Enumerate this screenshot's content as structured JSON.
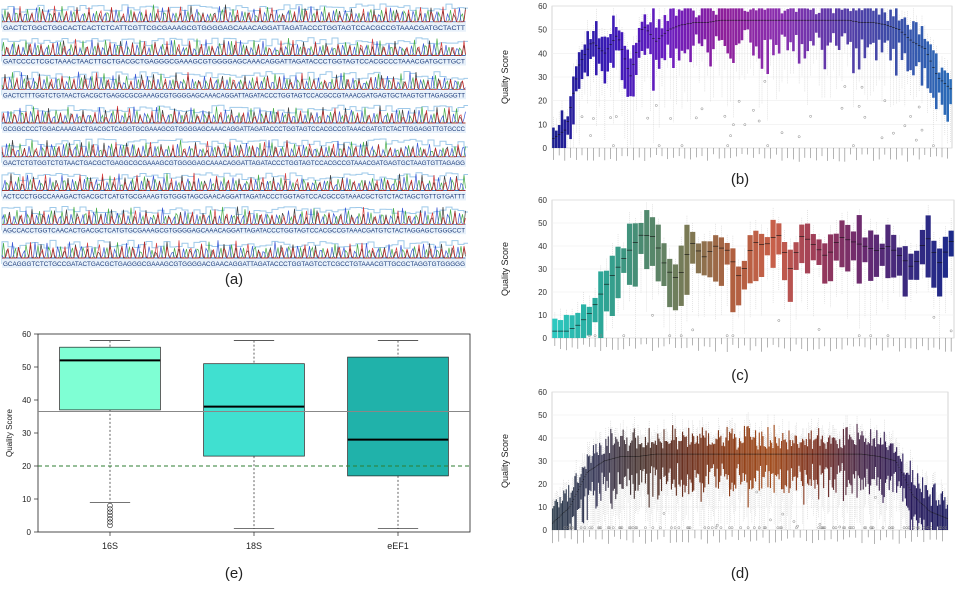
{
  "panel_labels": {
    "a": "(a)",
    "b": "(b)",
    "c": "(c)",
    "d": "(d)",
    "e": "(e)"
  },
  "chart_data": [
    {
      "panel": "a",
      "type": "other",
      "description_kind": "sequencing chromatogram",
      "rows": 8,
      "sequence_rows": [
        "GACTCTGGCTGGCACTCACTCTCATTCGTTCGCGAAAGCGTGGGGAGCAAACAGGATTAGATACCCTGGTAGTCCACGCCGTAAACGATGCTACTT",
        "GATCCCCTCGCTAAACTAACTTGCTGACGCTGAGGGCGAAAGCGTGGGGAGCAAACAGGATTAGATACCCTGGTAGTCCACGCCCTAAACGATGCTTGCT",
        "GACTCTTTGGTCTGTAACTGACGCTGAGGCGCGAAAGCGTGGGGAGCAAACAGGATTAGATACCCTGGTAGTCCACGCCGTAAACGATGAGTGCTAAGTGTTAGAGGGTT",
        "GCGGCCCCTGGACAAAGACTGACGCTCAGGTGCGAAAGCGTGGGGAGCAAACAGGATTAGATACCCTGGTAGTCCACGCCGTAAACGATGTCTACTTGGAGGTTGTGCCC",
        "GACTCTGTGGTCTGTAACTGACGCTGAGGCGCGAAAGCGTGGGGAGCAAACAGGATTAGATACCCTGGTAGTCCACGCCGTAAACGATGAGTGCTAAGTGTTAGAGG",
        "ACTCCCTGGCCAAAGACTGACGCTCATGTGCGAAAGTGTGGGTAGCGAACAGGATTAGATACCCTGGTAGTCCACGCCGTAAACGCTGTCTACTAGCTGTTGTGATTT",
        "AGCCACCTGGTCAACACTGACGCTCATGTGCGAAAGCGTGGGGAGCAAACAGGATTAGATACCCTGGTAGTCCACGCCGTAAACGATGTCTACTAGGAGCTGGGCCT",
        "GCAGGGTCTCTGCCGATACTGACGCTGAGGGCGAAAGCGTGGGGACGAACAGGATTAGATACCCTGGTAGTCCTCGCCTGTAAACGTTGCGCTAGGTGTGGGGG"
      ]
    },
    {
      "panel": "b",
      "type": "boxplot",
      "ylabel": "Quality Score",
      "ylim": [
        0,
        60
      ],
      "yticks": [
        0,
        10,
        20,
        30,
        40,
        50,
        60
      ],
      "n_positions": 140,
      "median_profile": [
        4,
        8,
        35,
        45,
        40,
        48,
        30,
        52,
        45,
        50,
        52,
        53,
        53,
        54,
        54,
        54,
        54,
        54,
        54,
        54,
        54,
        54,
        54,
        54,
        53,
        53,
        52,
        50,
        45,
        42,
        30,
        25
      ],
      "color_gradient": [
        "#1c1f8f",
        "#3a1ab8",
        "#6a1cc0",
        "#8e1f9a",
        "#8a2fb0",
        "#5a3aa8",
        "#3b4da8",
        "#2a6cb8"
      ]
    },
    {
      "panel": "c",
      "type": "boxplot",
      "ylabel": "Quality Score",
      "ylim": [
        0,
        60
      ],
      "yticks": [
        0,
        10,
        20,
        30,
        40,
        50,
        60
      ],
      "n_positions": 70,
      "median_profile": [
        3,
        3,
        6,
        12,
        22,
        30,
        38,
        45,
        44,
        30,
        25,
        42,
        35,
        40,
        38,
        25,
        42,
        40,
        46,
        30,
        45,
        40,
        35,
        44,
        42,
        40,
        38,
        40,
        35,
        30,
        45,
        32,
        42
      ],
      "color_gradient": [
        "#2ec8c0",
        "#2aa89a",
        "#4d8a70",
        "#7a7a55",
        "#b06040",
        "#c8604a",
        "#9a3a5a",
        "#6a2a70",
        "#3a2a80",
        "#1c2a8a"
      ]
    },
    {
      "panel": "d",
      "type": "boxplot",
      "ylabel": "Quality Score",
      "ylim": [
        0,
        60
      ],
      "yticks": [
        0,
        10,
        20,
        30,
        40,
        50,
        60
      ],
      "n_positions": 320,
      "median_profile": [
        3,
        10,
        25,
        30,
        32,
        32,
        33,
        33,
        33,
        33,
        33,
        33,
        33,
        33,
        33,
        33,
        33,
        33,
        33,
        32,
        30,
        15,
        8,
        5
      ],
      "color_gradient": [
        "#2a3a4a",
        "#3a3a5a",
        "#4a3530",
        "#6a3020",
        "#8a3a15",
        "#a04a1a",
        "#7a3020",
        "#4a2a4a",
        "#2a1a5a",
        "#1a1a60"
      ]
    },
    {
      "panel": "e",
      "type": "boxplot",
      "ylabel": "Quality Score",
      "ylim": [
        0,
        60
      ],
      "yticks": [
        0,
        10,
        20,
        30,
        40,
        50,
        60
      ],
      "categories": [
        "16S",
        "18S",
        "eEF1"
      ],
      "boxes": [
        {
          "min": 9,
          "q1": 37,
          "median": 52,
          "q3": 56,
          "max": 58,
          "outliers": [
            8,
            7,
            6,
            5,
            4,
            3,
            2
          ],
          "color": "#7fffd4"
        },
        {
          "min": 1,
          "q1": 23,
          "median": 38,
          "q3": 51,
          "max": 58,
          "outliers": [],
          "color": "#40e0d0"
        },
        {
          "min": 1,
          "q1": 17,
          "median": 28,
          "q3": 53,
          "max": 58,
          "outliers": [],
          "color": "#20b2aa"
        }
      ],
      "reference_lines": [
        {
          "y": 36.5,
          "style": "solid",
          "color": "#888888"
        },
        {
          "y": 20,
          "style": "dashed",
          "color": "#2e7d32"
        }
      ]
    }
  ]
}
